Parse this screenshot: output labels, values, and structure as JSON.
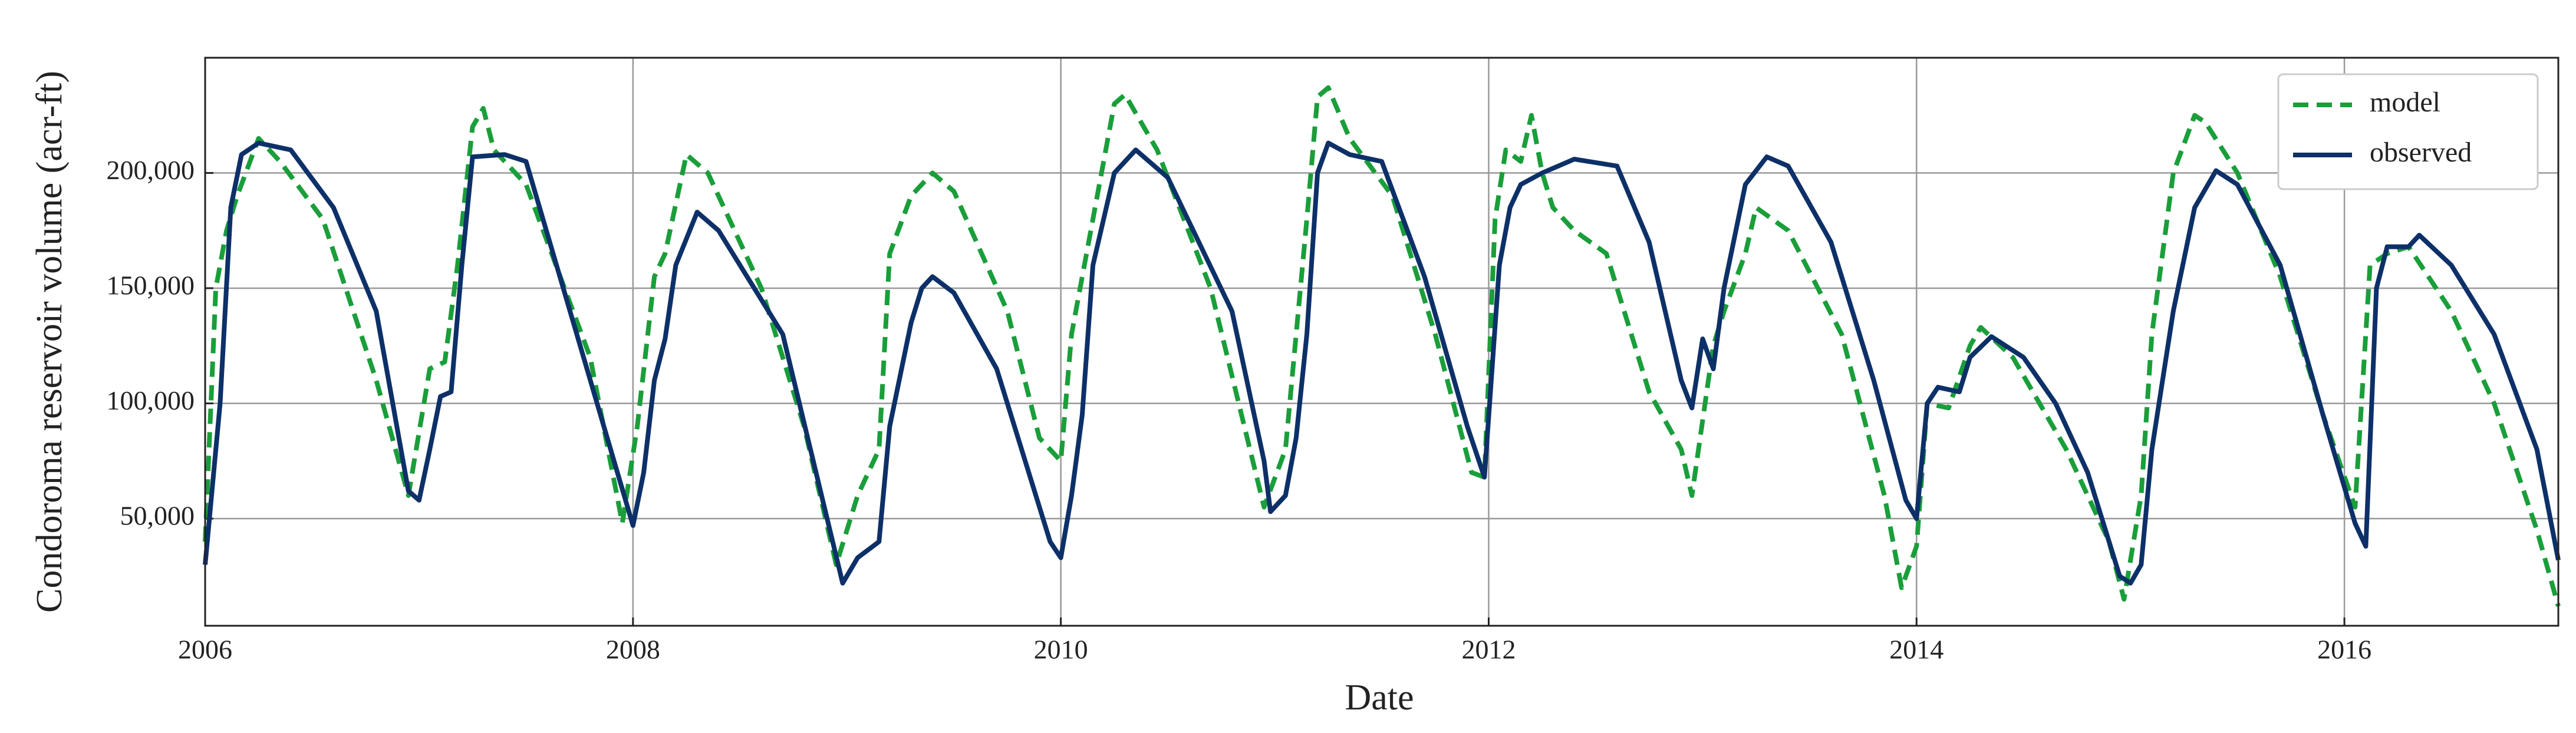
{
  "chart_data": {
    "type": "line",
    "xlabel": "Date",
    "ylabel": "Condoroma reservoir volume (acr-ft)",
    "xlim": [
      2006,
      2017
    ],
    "xticks": [
      2006,
      2008,
      2010,
      2012,
      2014,
      2016
    ],
    "ylim": [
      3500,
      250000
    ],
    "yticks": [
      {
        "value": 50000,
        "label": "50,000"
      },
      {
        "value": 100000,
        "label": "100,000"
      },
      {
        "value": 150000,
        "label": "150,000"
      },
      {
        "value": 200000,
        "label": "200,000"
      }
    ],
    "grid": true,
    "legend": "upper right",
    "series": [
      {
        "name": "model",
        "color": "#1a9e3a",
        "linestyle": "dashed",
        "x": [
          2006.0,
          2006.05,
          2006.1,
          2006.15,
          2006.25,
          2006.35,
          2006.55,
          2006.8,
          2006.95,
          2007.05,
          2007.12,
          2007.18,
          2007.25,
          2007.3,
          2007.35,
          2007.5,
          2007.8,
          2007.95,
          2008.02,
          2008.1,
          2008.15,
          2008.25,
          2008.35,
          2008.6,
          2008.8,
          2008.95,
          2009.05,
          2009.15,
          2009.2,
          2009.3,
          2009.4,
          2009.5,
          2009.75,
          2009.9,
          2010.0,
          2010.05,
          2010.15,
          2010.25,
          2010.3,
          2010.45,
          2010.7,
          2010.95,
          2011.05,
          2011.15,
          2011.2,
          2011.25,
          2011.35,
          2011.55,
          2011.75,
          2011.92,
          2011.98,
          2012.03,
          2012.08,
          2012.15,
          2012.2,
          2012.25,
          2012.3,
          2012.4,
          2012.55,
          2012.75,
          2012.9,
          2012.95,
          2013.05,
          2013.1,
          2013.2,
          2013.25,
          2013.4,
          2013.65,
          2013.85,
          2013.93,
          2014.0,
          2014.05,
          2014.15,
          2014.25,
          2014.3,
          2014.45,
          2014.7,
          2014.9,
          2014.97,
          2015.05,
          2015.1,
          2015.2,
          2015.3,
          2015.35,
          2015.5,
          2015.7,
          2015.9,
          2016.05,
          2016.12,
          2016.2,
          2016.3,
          2016.5,
          2016.7,
          2016.9,
          2017.0
        ],
        "values": [
          40000,
          150000,
          175000,
          190000,
          215000,
          205000,
          180000,
          110000,
          60000,
          115000,
          118000,
          160000,
          220000,
          228000,
          210000,
          195000,
          120000,
          48000,
          90000,
          155000,
          165000,
          208000,
          200000,
          150000,
          90000,
          30000,
          60000,
          80000,
          165000,
          190000,
          200000,
          192000,
          140000,
          85000,
          75000,
          130000,
          180000,
          230000,
          234000,
          210000,
          150000,
          55000,
          80000,
          180000,
          233000,
          237000,
          215000,
          190000,
          130000,
          70000,
          68000,
          180000,
          210000,
          205000,
          225000,
          200000,
          185000,
          175000,
          165000,
          105000,
          80000,
          60000,
          125000,
          140000,
          165000,
          185000,
          175000,
          130000,
          60000,
          20000,
          38000,
          100000,
          98000,
          125000,
          133000,
          120000,
          80000,
          40000,
          15000,
          60000,
          130000,
          200000,
          225000,
          222000,
          200000,
          155000,
          95000,
          55000,
          160000,
          165000,
          168000,
          140000,
          100000,
          45000,
          12000
        ]
      },
      {
        "name": "observed",
        "color": "#0d3068",
        "linestyle": "solid",
        "x": [
          2006.0,
          2006.07,
          2006.12,
          2006.17,
          2006.25,
          2006.4,
          2006.6,
          2006.8,
          2006.95,
          2007.0,
          2007.05,
          2007.1,
          2007.15,
          2007.2,
          2007.25,
          2007.4,
          2007.5,
          2008.0,
          2008.05,
          2008.1,
          2008.15,
          2008.2,
          2008.3,
          2008.4,
          2008.7,
          2008.98,
          2009.05,
          2009.15,
          2009.2,
          2009.3,
          2009.35,
          2009.4,
          2009.5,
          2009.7,
          2009.85,
          2009.95,
          2010.0,
          2010.05,
          2010.1,
          2010.15,
          2010.25,
          2010.35,
          2010.5,
          2010.8,
          2010.95,
          2010.98,
          2011.05,
          2011.1,
          2011.15,
          2011.2,
          2011.25,
          2011.35,
          2011.5,
          2011.7,
          2011.9,
          2011.98,
          2012.05,
          2012.1,
          2012.15,
          2012.25,
          2012.4,
          2012.6,
          2012.75,
          2012.9,
          2012.95,
          2013.0,
          2013.05,
          2013.1,
          2013.2,
          2013.3,
          2013.4,
          2013.6,
          2013.8,
          2013.95,
          2014.0,
          2014.05,
          2014.1,
          2014.2,
          2014.25,
          2014.35,
          2014.5,
          2014.65,
          2014.8,
          2014.95,
          2015.0,
          2015.05,
          2015.1,
          2015.2,
          2015.3,
          2015.4,
          2015.5,
          2015.7,
          2015.9,
          2016.05,
          2016.1,
          2016.15,
          2016.2,
          2016.3,
          2016.35,
          2016.5,
          2016.7,
          2016.9,
          2017.0
        ],
        "values": [
          30000,
          100000,
          185000,
          208000,
          213000,
          210000,
          185000,
          140000,
          62000,
          58000,
          80000,
          103000,
          105000,
          160000,
          207000,
          208000,
          205000,
          47000,
          70000,
          110000,
          128000,
          160000,
          183000,
          175000,
          130000,
          22000,
          33000,
          40000,
          90000,
          135000,
          150000,
          155000,
          148000,
          115000,
          70000,
          40000,
          33000,
          60000,
          95000,
          160000,
          200000,
          210000,
          198000,
          140000,
          75000,
          53000,
          60000,
          85000,
          130000,
          200000,
          213000,
          208000,
          205000,
          155000,
          90000,
          68000,
          160000,
          185000,
          195000,
          200000,
          206000,
          203000,
          170000,
          110000,
          98000,
          128000,
          115000,
          150000,
          195000,
          207000,
          203000,
          170000,
          110000,
          58000,
          50000,
          100000,
          107000,
          105000,
          120000,
          129000,
          120000,
          100000,
          70000,
          25000,
          22000,
          30000,
          80000,
          140000,
          185000,
          201000,
          195000,
          160000,
          95000,
          48000,
          38000,
          150000,
          168000,
          168000,
          173000,
          160000,
          130000,
          80000,
          32000
        ]
      }
    ]
  }
}
